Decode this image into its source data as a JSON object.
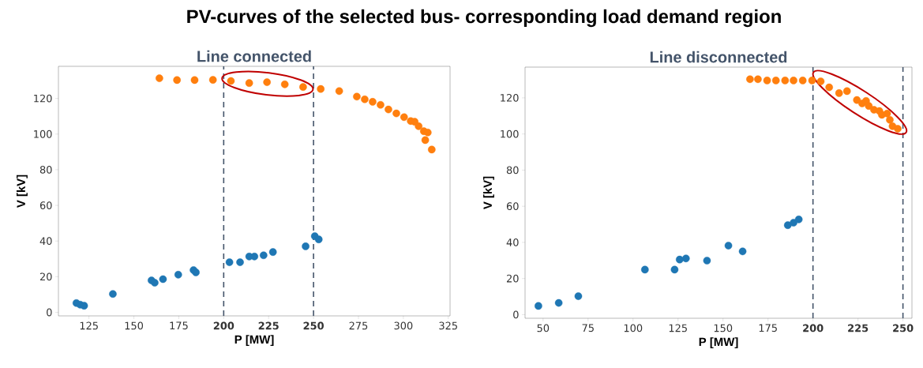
{
  "chart_data": [
    {
      "type": "scatter",
      "title": "PV-curves of the selected bus- corresponding load demand region",
      "subtitle": "Line connected",
      "xlabel": "P [MW]",
      "ylabel": "V [kV]",
      "xlim": [
        108,
        326
      ],
      "ylim": [
        -2,
        138
      ],
      "xticks": [
        125,
        150,
        175,
        {
          "value": 200,
          "label": "**200**"
        },
        {
          "value": 225,
          "label": "**225**"
        },
        {
          "value": 250,
          "label": "**250**"
        },
        275,
        300,
        325
      ],
      "yticks": [
        0,
        20,
        40,
        60,
        80,
        100,
        120
      ],
      "grid": false,
      "ref_lines": [
        {
          "axis": "x",
          "value": 200,
          "color": "#44546a",
          "line_style": "dashed"
        },
        {
          "axis": "x",
          "value": 250,
          "color": "#44546a",
          "line_style": "dashed"
        }
      ],
      "series": [
        {
          "color": "#1f77b4",
          "x": [
            118,
            120.1,
            122.3,
            138.3,
            159.8,
            161.6,
            166.2,
            174.7,
            183.2,
            184.5,
            203.2,
            209.1,
            214.2,
            217.1,
            222.2,
            227.4,
            245.6,
            250.7,
            252.9
          ],
          "values": [
            5.2,
            4.3,
            3.7,
            10.3,
            17.9,
            16.6,
            18.6,
            21.1,
            23.7,
            22.4,
            28.1,
            28.1,
            31.3,
            31.3,
            32,
            33.8,
            37,
            42.7,
            40.9
          ]
        },
        {
          "color": "#ff7f0e",
          "x": [
            164.2,
            174,
            183.8,
            194,
            204,
            214.2,
            224.1,
            234,
            244.2,
            254,
            264.3,
            274.1,
            278.5,
            282.9,
            287.3,
            291.7,
            296.1,
            300.4,
            304.1,
            306.3,
            308.5,
            311.4,
            312.2,
            313.6,
            315.8
          ],
          "values": [
            131.3,
            130.3,
            130.3,
            130.4,
            129.8,
            128.6,
            129.1,
            127.9,
            126.4,
            125.3,
            124.1,
            121,
            119.5,
            118.1,
            116.4,
            113.8,
            111.6,
            109.5,
            107.3,
            106.9,
            104.4,
            101.6,
            96.6,
            100.9,
            91.3
          ]
        }
      ]
    },
    {
      "type": "scatter",
      "subtitle": "Line disconnected",
      "xlabel": "P [MW]",
      "ylabel": "V [kV]",
      "xlim": [
        40,
        255
      ],
      "ylim": [
        -2,
        137
      ],
      "xticks": [
        50,
        75,
        100,
        125,
        150,
        175,
        {
          "value": 200,
          "label": "**200**"
        },
        {
          "value": 225,
          "label": "**225**"
        },
        {
          "value": 250,
          "label": "**250**"
        }
      ],
      "yticks": [
        0,
        20,
        40,
        60,
        80,
        100,
        120
      ],
      "grid": false,
      "ref_lines": [
        {
          "axis": "x",
          "value": 200,
          "color": "#44546a",
          "line_style": "dashed"
        },
        {
          "axis": "x",
          "value": 250,
          "color": "#44546a",
          "line_style": "dashed"
        }
      ],
      "series": [
        {
          "color": "#1f77b4",
          "x": [
            47.4,
            58.7,
            69.6,
            106.6,
            123.1,
            125.9,
            129.4,
            141.1,
            153,
            160.9,
            186,
            189.2,
            192.1
          ],
          "values": [
            4.8,
            6.5,
            10.2,
            24.9,
            24.9,
            30.5,
            31.1,
            29.9,
            38.2,
            35,
            49.5,
            50.9,
            52.7
          ]
        },
        {
          "color": "#ff7f0e",
          "x": [
            165,
            169.4,
            174.5,
            179.4,
            184.5,
            189.2,
            194.3,
            199.5,
            204.3,
            209,
            214.5,
            218.9,
            224.4,
            227.3,
            229.5,
            231,
            233.9,
            236.9,
            238.3,
            241.2,
            242.7,
            244.2,
            247.1
          ],
          "values": [
            130.3,
            130.3,
            129.6,
            129.6,
            129.6,
            129.6,
            129.6,
            129.6,
            129.1,
            125.8,
            122.6,
            123.7,
            118.8,
            116.9,
            118.3,
            115.5,
            113.4,
            112.7,
            110.6,
            111.3,
            107.8,
            104.3,
            102.9
          ]
        }
      ]
    }
  ]
}
